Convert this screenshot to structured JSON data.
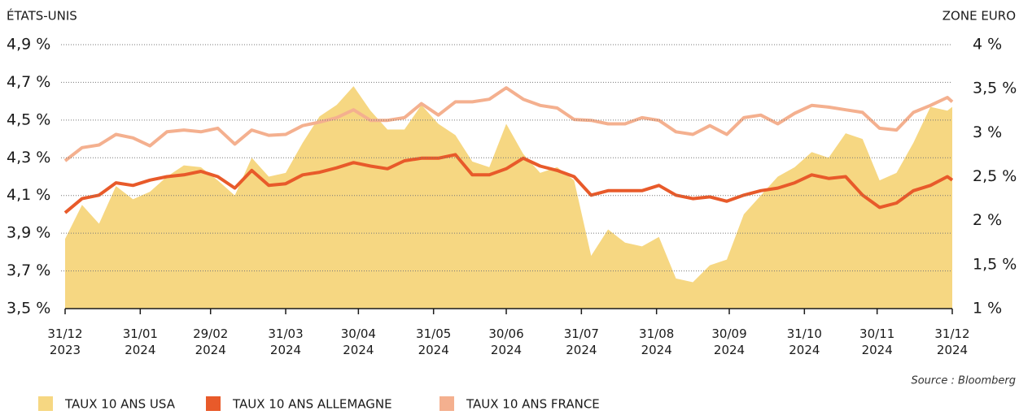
{
  "chart_data": {
    "type": "line",
    "y_label": "ÉTATS-UNIS",
    "y2_label": "ZONE EURO",
    "source": "Source : Bloomberg",
    "x": [
      "2023-12-31",
      "2024-01-07",
      "2024-01-14",
      "2024-01-21",
      "2024-01-28",
      "2024-02-04",
      "2024-02-11",
      "2024-02-18",
      "2024-02-25",
      "2024-03-03",
      "2024-03-10",
      "2024-03-17",
      "2024-03-24",
      "2024-03-31",
      "2024-04-07",
      "2024-04-14",
      "2024-04-21",
      "2024-04-28",
      "2024-05-05",
      "2024-05-12",
      "2024-05-19",
      "2024-05-26",
      "2024-06-02",
      "2024-06-09",
      "2024-06-16",
      "2024-06-23",
      "2024-06-30",
      "2024-07-07",
      "2024-07-14",
      "2024-07-21",
      "2024-07-28",
      "2024-08-04",
      "2024-08-11",
      "2024-08-18",
      "2024-08-25",
      "2024-09-01",
      "2024-09-08",
      "2024-09-15",
      "2024-09-22",
      "2024-09-29",
      "2024-10-06",
      "2024-10-13",
      "2024-10-20",
      "2024-10-27",
      "2024-11-03",
      "2024-11-10",
      "2024-11-17",
      "2024-11-24",
      "2024-12-01",
      "2024-12-08",
      "2024-12-15",
      "2024-12-22",
      "2024-12-29",
      "2024-12-31"
    ],
    "series": [
      {
        "name": "TAUX 10 ANS USA",
        "type": "area",
        "axis": "y",
        "color": "#f6d782",
        "values": [
          3.87,
          4.05,
          3.95,
          4.15,
          4.08,
          4.12,
          4.2,
          4.26,
          4.25,
          4.18,
          4.1,
          4.3,
          4.2,
          4.22,
          4.38,
          4.52,
          4.58,
          4.68,
          4.55,
          4.45,
          4.45,
          4.58,
          4.48,
          4.42,
          4.28,
          4.25,
          4.48,
          4.32,
          4.22,
          4.25,
          4.18,
          3.78,
          3.92,
          3.85,
          3.83,
          3.88,
          3.66,
          3.64,
          3.73,
          3.76,
          4.0,
          4.1,
          4.2,
          4.25,
          4.33,
          4.3,
          4.43,
          4.4,
          4.18,
          4.22,
          4.38,
          4.57,
          4.55,
          4.57
        ]
      },
      {
        "name": "TAUX 10 ANS ALLEMAGNE",
        "type": "line",
        "axis": "y2",
        "color": "#e85a2a",
        "values": [
          2.09,
          2.25,
          2.29,
          2.43,
          2.4,
          2.46,
          2.5,
          2.52,
          2.56,
          2.5,
          2.37,
          2.57,
          2.4,
          2.42,
          2.52,
          2.55,
          2.6,
          2.66,
          2.62,
          2.59,
          2.68,
          2.71,
          2.71,
          2.75,
          2.52,
          2.52,
          2.59,
          2.71,
          2.62,
          2.57,
          2.5,
          2.29,
          2.34,
          2.34,
          2.34,
          2.4,
          2.29,
          2.25,
          2.27,
          2.22,
          2.29,
          2.34,
          2.37,
          2.43,
          2.52,
          2.48,
          2.5,
          2.29,
          2.15,
          2.2,
          2.34,
          2.4,
          2.5,
          2.46
        ]
      },
      {
        "name": "TAUX 10 ANS FRANCE",
        "type": "line",
        "axis": "y2",
        "color": "#f4b08f",
        "values": [
          2.68,
          2.83,
          2.86,
          2.98,
          2.94,
          2.85,
          3.01,
          3.03,
          3.01,
          3.05,
          2.87,
          3.03,
          2.97,
          2.98,
          3.08,
          3.12,
          3.17,
          3.26,
          3.14,
          3.14,
          3.17,
          3.33,
          3.2,
          3.35,
          3.35,
          3.38,
          3.51,
          3.38,
          3.31,
          3.28,
          3.15,
          3.14,
          3.1,
          3.1,
          3.17,
          3.14,
          3.01,
          2.98,
          3.08,
          2.98,
          3.17,
          3.2,
          3.1,
          3.22,
          3.31,
          3.29,
          3.26,
          3.23,
          3.05,
          3.03,
          3.23,
          3.31,
          3.4,
          3.35
        ]
      }
    ],
    "xlim": [
      "2023-12-31",
      "2024-12-31"
    ],
    "xticks": [
      {
        "value": "2023-12-31",
        "label": "31/12\n2023"
      },
      {
        "value": "2024-01-31",
        "label": "31/01\n2024"
      },
      {
        "value": "2024-02-29",
        "label": "29/02\n2024"
      },
      {
        "value": "2024-03-31",
        "label": "31/03\n2024"
      },
      {
        "value": "2024-04-30",
        "label": "30/04\n2024"
      },
      {
        "value": "2024-05-31",
        "label": "31/05\n2024"
      },
      {
        "value": "2024-06-30",
        "label": "30/06\n2024"
      },
      {
        "value": "2024-07-31",
        "label": "31/07\n2024"
      },
      {
        "value": "2024-08-31",
        "label": "31/08\n2024"
      },
      {
        "value": "2024-09-30",
        "label": "30/09\n2024"
      },
      {
        "value": "2024-10-31",
        "label": "31/10\n2024"
      },
      {
        "value": "2024-11-30",
        "label": "30/11\n2024"
      },
      {
        "value": "2024-12-31",
        "label": "31/12\n2024"
      }
    ],
    "ylim": [
      3.5,
      4.9
    ],
    "yticks": [
      {
        "value": 3.5,
        "label": "3,5 %"
      },
      {
        "value": 3.7,
        "label": "3,7 %"
      },
      {
        "value": 3.9,
        "label": "3,9 %"
      },
      {
        "value": 4.1,
        "label": "4,1 %"
      },
      {
        "value": 4.3,
        "label": "4,3 %"
      },
      {
        "value": 4.5,
        "label": "4,5 %"
      },
      {
        "value": 4.7,
        "label": "4,7 %"
      },
      {
        "value": 4.9,
        "label": "4,9 %"
      }
    ],
    "y2lim": [
      1,
      4
    ],
    "y2ticks": [
      {
        "value": 1,
        "label": "1 %"
      },
      {
        "value": 1.5,
        "label": "1,5 %"
      },
      {
        "value": 2,
        "label": "2 %"
      },
      {
        "value": 2.5,
        "label": "2,5 %"
      },
      {
        "value": 3,
        "label": "3 %"
      },
      {
        "value": 3.5,
        "label": "3,5 %"
      },
      {
        "value": 4,
        "label": "4 %"
      }
    ],
    "grid": true
  }
}
